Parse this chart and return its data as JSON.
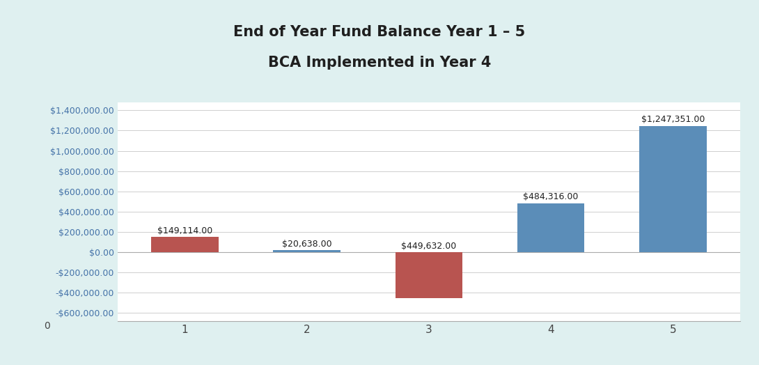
{
  "title_line1": "End of Year Fund Balance Year 1 – 5",
  "title_line2": "BCA Implemented in Year 4",
  "categories": [
    1,
    2,
    3,
    4,
    5
  ],
  "values": [
    149114,
    20638,
    -449632,
    484316,
    1247351
  ],
  "bar_colors": [
    "#B85450",
    "#5B8DB8",
    "#B85450",
    "#5B8DB8",
    "#5B8DB8"
  ],
  "labels": [
    "$149,114.00",
    "$20,638.00",
    "$449,632.00",
    "$484,316.00",
    "$1,247,351.00"
  ],
  "ylim": [
    -680000,
    1480000
  ],
  "yticks": [
    -600000,
    -400000,
    -200000,
    0,
    200000,
    400000,
    600000,
    800000,
    1000000,
    1200000,
    1400000
  ],
  "title_bg_color": "#DFF0F0",
  "chart_bg_color": "#FFFFFF",
  "outer_bg_color": "#DFF0F0",
  "title_fontsize": 15,
  "label_fontsize": 9,
  "tick_fontsize": 9,
  "bar_width": 0.55,
  "grid_color": "#C8C8C8",
  "axis_color": "#AAAAAA",
  "tick_label_color": "#4472A8",
  "text_color": "#1F1F1F",
  "zero_label_color": "#444444"
}
